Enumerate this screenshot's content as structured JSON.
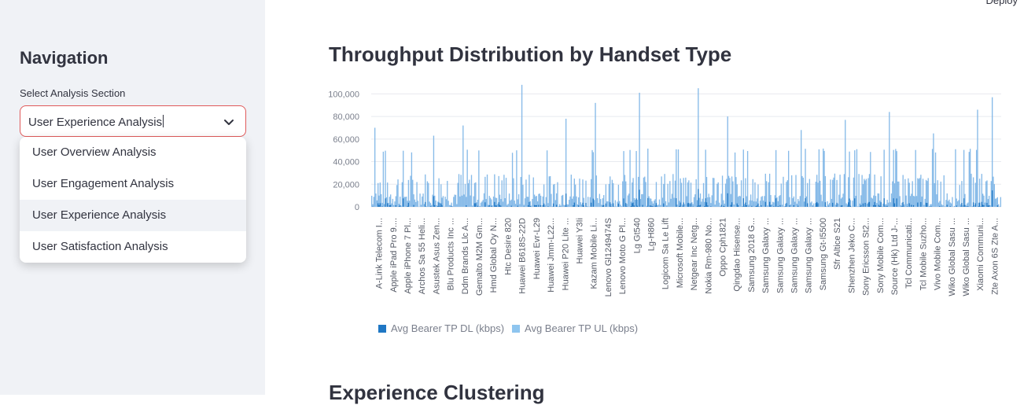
{
  "header": {
    "deploy_label": "Deploy"
  },
  "sidebar": {
    "title": "Navigation",
    "select_label": "Select Analysis Section",
    "selected_value": "User Experience Analysis",
    "options": [
      "User Overview Analysis",
      "User Engagement Analysis",
      "User Experience Analysis",
      "User Satisfaction Analysis"
    ]
  },
  "main": {
    "title": "Throughput Distribution by Handset Type",
    "next_section_title": "Experience Clustering"
  },
  "colors": {
    "dl": "#1f77c4",
    "ul": "#8ec5ef",
    "select_border": "#e05a5a"
  },
  "chart_data": {
    "type": "bar",
    "ylim": [
      0,
      110000
    ],
    "yticks": [
      "0",
      "20,000",
      "40,000",
      "60,000",
      "80,000",
      "100,000"
    ],
    "ytick_values": [
      0,
      20000,
      40000,
      60000,
      80000,
      100000
    ],
    "categories": [
      "A-Link Telecom I...",
      "Apple iPad Pro 9....",
      "Apple iPhone 7 Pl...",
      "Archos Sa 55 Heli...",
      "Asustek Asus Zen...",
      "Blu Products Inc ...",
      "Ddm Brands Llc A...",
      "Gemalto M2M Gm...",
      "Hmd Global Oy N...",
      "Htc Desire 820",
      "Huawei B618S-22D",
      "Huawei Evr-L29",
      "Huawei Jmm-L22...",
      "Huawei P20 Lite ...",
      "Huawei Y3Ii",
      "Kazam Mobile Li...",
      "Lenovo Gl1249474S",
      "Lenovo Moto G Pl...",
      "Lg Gt540",
      "Lg-H860",
      "Logicom Sa Le Lift",
      "Microsoft Mobile...",
      "Netgear Inc Netg...",
      "Nokia Rm-980 No...",
      "Oppo Cph1821",
      "Qingdao Hisense...",
      "Samsung 2018 G...",
      "Samsung Galaxy ...",
      "Samsung Galaxy ...",
      "Samsung Galaxy ...",
      "Samsung Galaxy ...",
      "Samsung Gt-I5500",
      "Sfr Altice S21",
      "Shenzhen Jeko C...",
      "Sony Ericsson St2...",
      "Sony Mobile Com...",
      "Source (Hk) Ltd J-...",
      "Tcl Communicati...",
      "Tcl Mobile Suzho...",
      "Vivo Mobile Com...",
      "Wiko Global Sasu ...",
      "Wiko Global Sasu ...",
      "Xiaomi Communi...",
      "Zte Axon 6S Zte A..."
    ],
    "peaks": [
      {
        "category_index": 0,
        "value": 70000
      },
      {
        "category_index": 4,
        "value": 63000
      },
      {
        "category_index": 6,
        "value": 72000
      },
      {
        "category_index": 10,
        "value": 108000
      },
      {
        "category_index": 13,
        "value": 78000
      },
      {
        "category_index": 15,
        "value": 92000
      },
      {
        "category_index": 18,
        "value": 101000
      },
      {
        "category_index": 22,
        "value": 105000
      },
      {
        "category_index": 24,
        "value": 80000
      },
      {
        "category_index": 29,
        "value": 68000
      },
      {
        "category_index": 33,
        "value": 77000
      },
      {
        "category_index": 36,
        "value": 84000
      },
      {
        "category_index": 39,
        "value": 65000
      },
      {
        "category_index": 42,
        "value": 86000
      },
      {
        "category_index": 43,
        "value": 97000
      }
    ],
    "series": [
      {
        "name": "Avg Bearer TP DL (kbps)"
      },
      {
        "name": "Avg Bearer TP UL (kbps)"
      }
    ]
  }
}
